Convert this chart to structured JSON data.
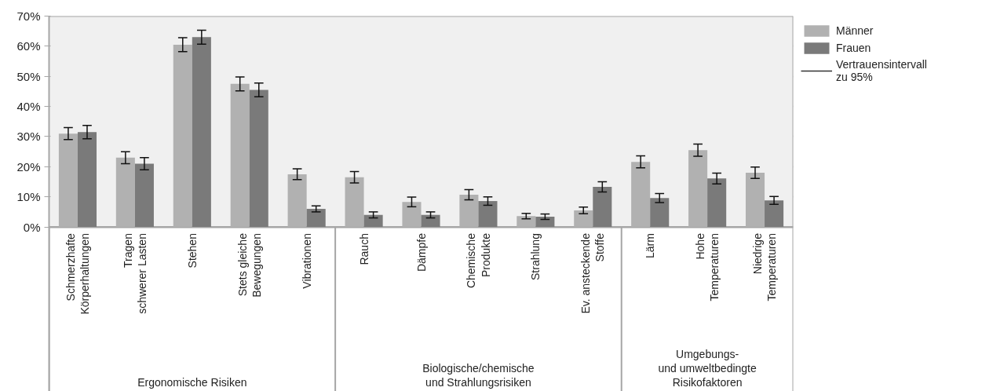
{
  "chart_data": {
    "type": "bar",
    "categories": [
      "Schmerzhafte\nKörperhaltungen",
      "Tragen\nschwerer Lasten",
      "Stehen",
      "Stets gleiche\nBewegungen",
      "Vibrationen",
      "Rauch",
      "Dämpfe",
      "Chemische\nProdukte",
      "Strahlung",
      "Ev. ansteckende\nStoffe",
      "Lärm",
      "Hohe\nTemperaturen",
      "Niedrige\nTemperaturen"
    ],
    "series": [
      {
        "name": "Männer",
        "color": "#b1b1b1",
        "values": [
          31,
          23,
          60.5,
          47.5,
          17.5,
          16.5,
          8.3,
          10.7,
          3.6,
          5.5,
          21.6,
          25.5,
          18
        ],
        "errors": [
          2,
          2,
          2.3,
          2.3,
          1.8,
          1.9,
          1.6,
          1.7,
          0.9,
          1.1,
          2,
          2,
          1.9
        ]
      },
      {
        "name": "Frauen",
        "color": "#7a7a7a",
        "values": [
          31.5,
          21,
          63,
          45.5,
          6,
          4,
          4,
          8.6,
          3.4,
          13.3,
          9.6,
          16.1,
          8.8
        ],
        "errors": [
          2.2,
          2,
          2.3,
          2.3,
          1,
          1,
          1,
          1.4,
          0.9,
          1.7,
          1.5,
          1.8,
          1.3
        ]
      }
    ],
    "ylim": [
      0,
      70
    ],
    "yticks": [
      {
        "value": 0,
        "label": "0%"
      },
      {
        "value": 10,
        "label": "10%"
      },
      {
        "value": 20,
        "label": "20%"
      },
      {
        "value": 30,
        "label": "30%"
      },
      {
        "value": 40,
        "label": "40%"
      },
      {
        "value": 50,
        "label": "50%"
      },
      {
        "value": 60,
        "label": "60%"
      },
      {
        "value": 70,
        "label": "70%"
      }
    ],
    "grid": "y",
    "legend": "top right",
    "annotations": [
      "Ergonomische Risiken",
      "Biologische/chemische\nund Strahlungsrisiken",
      "Umgebungs-\nund umweltbedingte\nRisikofaktoren",
      "Vertrauensintervall\nzu 95%"
    ]
  }
}
